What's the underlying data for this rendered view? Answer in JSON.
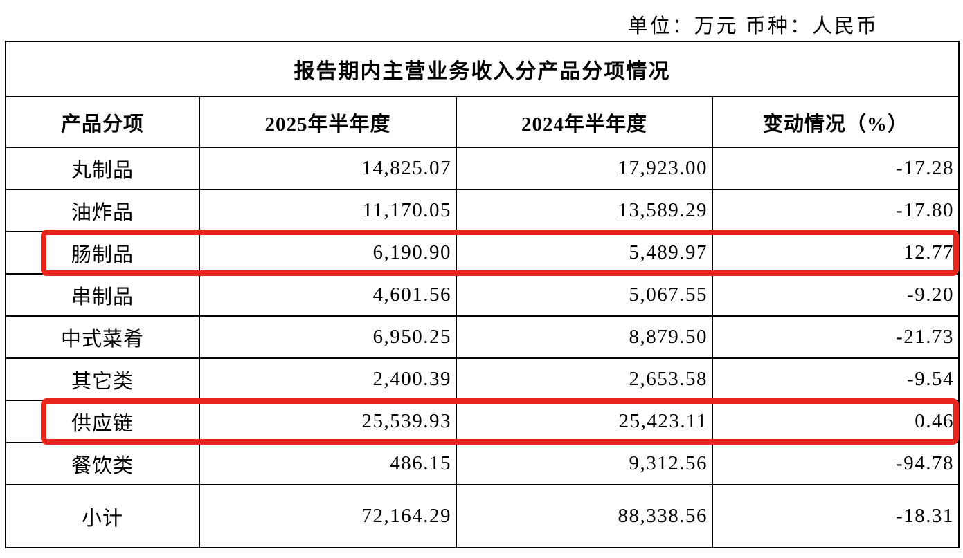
{
  "unit_line": "单位：万元  币种：人民币",
  "table": {
    "title": "报告期内主营业务收入分产品分项情况",
    "columns": {
      "product": "产品分项",
      "h2025": "2025年半年度",
      "h2024": "2024年半年度",
      "change": "变动情况（%）"
    },
    "rows": [
      {
        "product": "丸制品",
        "v2025": "14,825.07",
        "v2024": "17,923.00",
        "change": "-17.28",
        "highlighted": false
      },
      {
        "product": "油炸品",
        "v2025": "11,170.05",
        "v2024": "13,589.29",
        "change": "-17.80",
        "highlighted": false
      },
      {
        "product": "肠制品",
        "v2025": "6,190.90",
        "v2024": "5,489.97",
        "change": "12.77",
        "highlighted": true
      },
      {
        "product": "串制品",
        "v2025": "4,601.56",
        "v2024": "5,067.55",
        "change": "-9.20",
        "highlighted": false
      },
      {
        "product": "中式菜肴",
        "v2025": "6,950.25",
        "v2024": "8,879.50",
        "change": "-21.73",
        "highlighted": false
      },
      {
        "product": "其它类",
        "v2025": "2,400.39",
        "v2024": "2,653.58",
        "change": "-9.54",
        "highlighted": false
      },
      {
        "product": "供应链",
        "v2025": "25,539.93",
        "v2024": "25,423.11",
        "change": "0.46",
        "highlighted": true
      },
      {
        "product": "餐饮类",
        "v2025": "486.15",
        "v2024": "9,312.56",
        "change": "-94.78",
        "highlighted": false
      },
      {
        "product": "小计",
        "v2025": "72,164.29",
        "v2024": "88,338.56",
        "change": "-18.31",
        "highlighted": false
      }
    ]
  },
  "annotation": {
    "highlight_color": "#e8251d"
  }
}
